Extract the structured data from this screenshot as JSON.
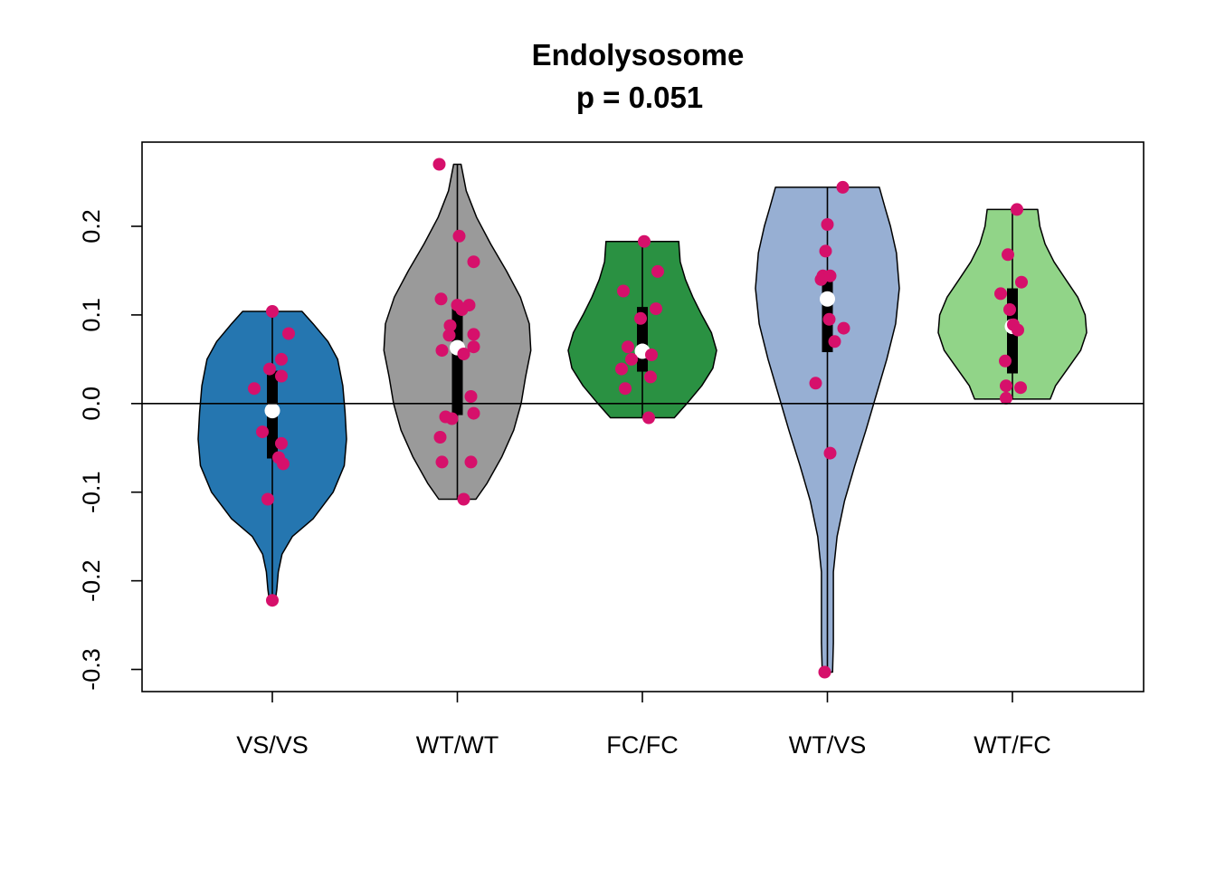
{
  "chart_data": {
    "type": "violin",
    "title": "Endolysosome",
    "subtitle": "p = 0.051",
    "xlabel": "",
    "ylabel": "",
    "ylim": [
      -0.325,
      0.295
    ],
    "yticks": [
      -0.3,
      -0.2,
      -0.1,
      0.0,
      0.1,
      0.2
    ],
    "ytick_labels": [
      "-0.3",
      "-0.2",
      "-0.1",
      "0.0",
      "0.1",
      "0.2"
    ],
    "reference_line": 0,
    "point_color": "#d6106b",
    "categories": [
      "VS/VS",
      "WT/WT",
      "FC/FC",
      "WT/VS",
      "WT/FC"
    ],
    "groups": [
      {
        "category": "VS/VS",
        "fill": "#2576b0",
        "min": -0.222,
        "max": 0.104,
        "q1": -0.062,
        "q3": 0.037,
        "median": -0.008,
        "density": [
          [
            -0.222,
            0.04
          ],
          [
            -0.21,
            0.06
          ],
          [
            -0.19,
            0.08
          ],
          [
            -0.17,
            0.13
          ],
          [
            -0.15,
            0.27
          ],
          [
            -0.13,
            0.55
          ],
          [
            -0.1,
            0.82
          ],
          [
            -0.07,
            0.97
          ],
          [
            -0.04,
            1.0
          ],
          [
            -0.01,
            0.98
          ],
          [
            0.02,
            0.95
          ],
          [
            0.05,
            0.88
          ],
          [
            0.07,
            0.75
          ],
          [
            0.09,
            0.55
          ],
          [
            0.104,
            0.4
          ]
        ],
        "points": [
          [
            0.0,
            0.104
          ],
          [
            0.18,
            0.079
          ],
          [
            0.1,
            0.05
          ],
          [
            -0.03,
            0.039
          ],
          [
            0.1,
            0.031
          ],
          [
            -0.2,
            0.017
          ],
          [
            -0.11,
            -0.032
          ],
          [
            0.1,
            -0.045
          ],
          [
            0.07,
            -0.061
          ],
          [
            0.12,
            -0.068
          ],
          [
            -0.05,
            -0.108
          ],
          [
            0.0,
            -0.222
          ]
        ]
      },
      {
        "category": "WT/WT",
        "fill": "#9a9a9a",
        "min": -0.108,
        "max": 0.27,
        "q1": -0.013,
        "q3": 0.108,
        "median": 0.063,
        "density": [
          [
            -0.108,
            0.25
          ],
          [
            -0.09,
            0.4
          ],
          [
            -0.06,
            0.6
          ],
          [
            -0.03,
            0.76
          ],
          [
            0.0,
            0.86
          ],
          [
            0.03,
            0.92
          ],
          [
            0.06,
            0.99
          ],
          [
            0.09,
            0.97
          ],
          [
            0.12,
            0.85
          ],
          [
            0.15,
            0.66
          ],
          [
            0.18,
            0.45
          ],
          [
            0.21,
            0.26
          ],
          [
            0.24,
            0.12
          ],
          [
            0.27,
            0.05
          ]
        ],
        "points": [
          [
            -0.2,
            0.27
          ],
          [
            0.02,
            0.189
          ],
          [
            0.18,
            0.16
          ],
          [
            -0.18,
            0.118
          ],
          [
            0.0,
            0.111
          ],
          [
            0.13,
            0.111
          ],
          [
            0.05,
            0.106
          ],
          [
            -0.08,
            0.088
          ],
          [
            0.18,
            0.078
          ],
          [
            -0.09,
            0.077
          ],
          [
            0.18,
            0.064
          ],
          [
            -0.17,
            0.06
          ],
          [
            0.07,
            0.056
          ],
          [
            0.15,
            0.008
          ],
          [
            0.18,
            -0.011
          ],
          [
            -0.13,
            -0.015
          ],
          [
            -0.06,
            -0.017
          ],
          [
            -0.19,
            -0.038
          ],
          [
            -0.17,
            -0.066
          ],
          [
            0.15,
            -0.066
          ],
          [
            0.07,
            -0.108
          ]
        ]
      },
      {
        "category": "FC/FC",
        "fill": "#2a9142",
        "min": -0.016,
        "max": 0.183,
        "q1": 0.036,
        "q3": 0.109,
        "median": 0.059,
        "density": [
          [
            -0.016,
            0.43
          ],
          [
            0.0,
            0.6
          ],
          [
            0.02,
            0.8
          ],
          [
            0.04,
            0.95
          ],
          [
            0.06,
            1.0
          ],
          [
            0.08,
            0.93
          ],
          [
            0.1,
            0.8
          ],
          [
            0.12,
            0.68
          ],
          [
            0.14,
            0.58
          ],
          [
            0.16,
            0.51
          ],
          [
            0.183,
            0.49
          ]
        ],
        "points": [
          [
            0.02,
            0.183
          ],
          [
            0.17,
            0.149
          ],
          [
            -0.21,
            0.127
          ],
          [
            0.15,
            0.107
          ],
          [
            -0.02,
            0.096
          ],
          [
            -0.16,
            0.064
          ],
          [
            0.1,
            0.055
          ],
          [
            -0.12,
            0.05
          ],
          [
            -0.23,
            0.039
          ],
          [
            0.09,
            0.03
          ],
          [
            -0.19,
            0.017
          ],
          [
            0.07,
            -0.016
          ]
        ]
      },
      {
        "category": "WT/VS",
        "fill": "#97afd3",
        "min": -0.303,
        "max": 0.244,
        "q1": 0.058,
        "q3": 0.148,
        "median": 0.118,
        "density": [
          [
            -0.303,
            0.07
          ],
          [
            -0.27,
            0.08
          ],
          [
            -0.23,
            0.08
          ],
          [
            -0.19,
            0.08
          ],
          [
            -0.15,
            0.13
          ],
          [
            -0.11,
            0.23
          ],
          [
            -0.07,
            0.37
          ],
          [
            -0.03,
            0.52
          ],
          [
            0.01,
            0.66
          ],
          [
            0.05,
            0.8
          ],
          [
            0.09,
            0.92
          ],
          [
            0.13,
            0.97
          ],
          [
            0.17,
            0.93
          ],
          [
            0.2,
            0.85
          ],
          [
            0.22,
            0.78
          ],
          [
            0.244,
            0.7
          ]
        ],
        "points": [
          [
            0.17,
            0.244
          ],
          [
            0.0,
            0.202
          ],
          [
            -0.02,
            0.172
          ],
          [
            -0.05,
            0.144
          ],
          [
            0.03,
            0.144
          ],
          [
            -0.07,
            0.14
          ],
          [
            0.02,
            0.095
          ],
          [
            0.18,
            0.085
          ],
          [
            0.08,
            0.07
          ],
          [
            -0.13,
            0.023
          ],
          [
            0.03,
            -0.056
          ],
          [
            -0.03,
            -0.303
          ]
        ]
      },
      {
        "category": "WT/FC",
        "fill": "#91d488",
        "min": 0.005,
        "max": 0.219,
        "q1": 0.034,
        "q3": 0.13,
        "median": 0.087,
        "density": [
          [
            0.005,
            0.51
          ],
          [
            0.02,
            0.58
          ],
          [
            0.04,
            0.75
          ],
          [
            0.06,
            0.92
          ],
          [
            0.08,
            1.0
          ],
          [
            0.1,
            0.98
          ],
          [
            0.12,
            0.88
          ],
          [
            0.14,
            0.72
          ],
          [
            0.16,
            0.56
          ],
          [
            0.18,
            0.44
          ],
          [
            0.2,
            0.37
          ],
          [
            0.219,
            0.34
          ]
        ],
        "points": [
          [
            0.05,
            0.219
          ],
          [
            -0.05,
            0.168
          ],
          [
            0.1,
            0.137
          ],
          [
            -0.13,
            0.124
          ],
          [
            -0.03,
            0.106
          ],
          [
            0.01,
            0.089
          ],
          [
            0.06,
            0.083
          ],
          [
            -0.08,
            0.048
          ],
          [
            -0.07,
            0.02
          ],
          [
            0.09,
            0.018
          ],
          [
            -0.07,
            0.006
          ]
        ]
      }
    ]
  }
}
